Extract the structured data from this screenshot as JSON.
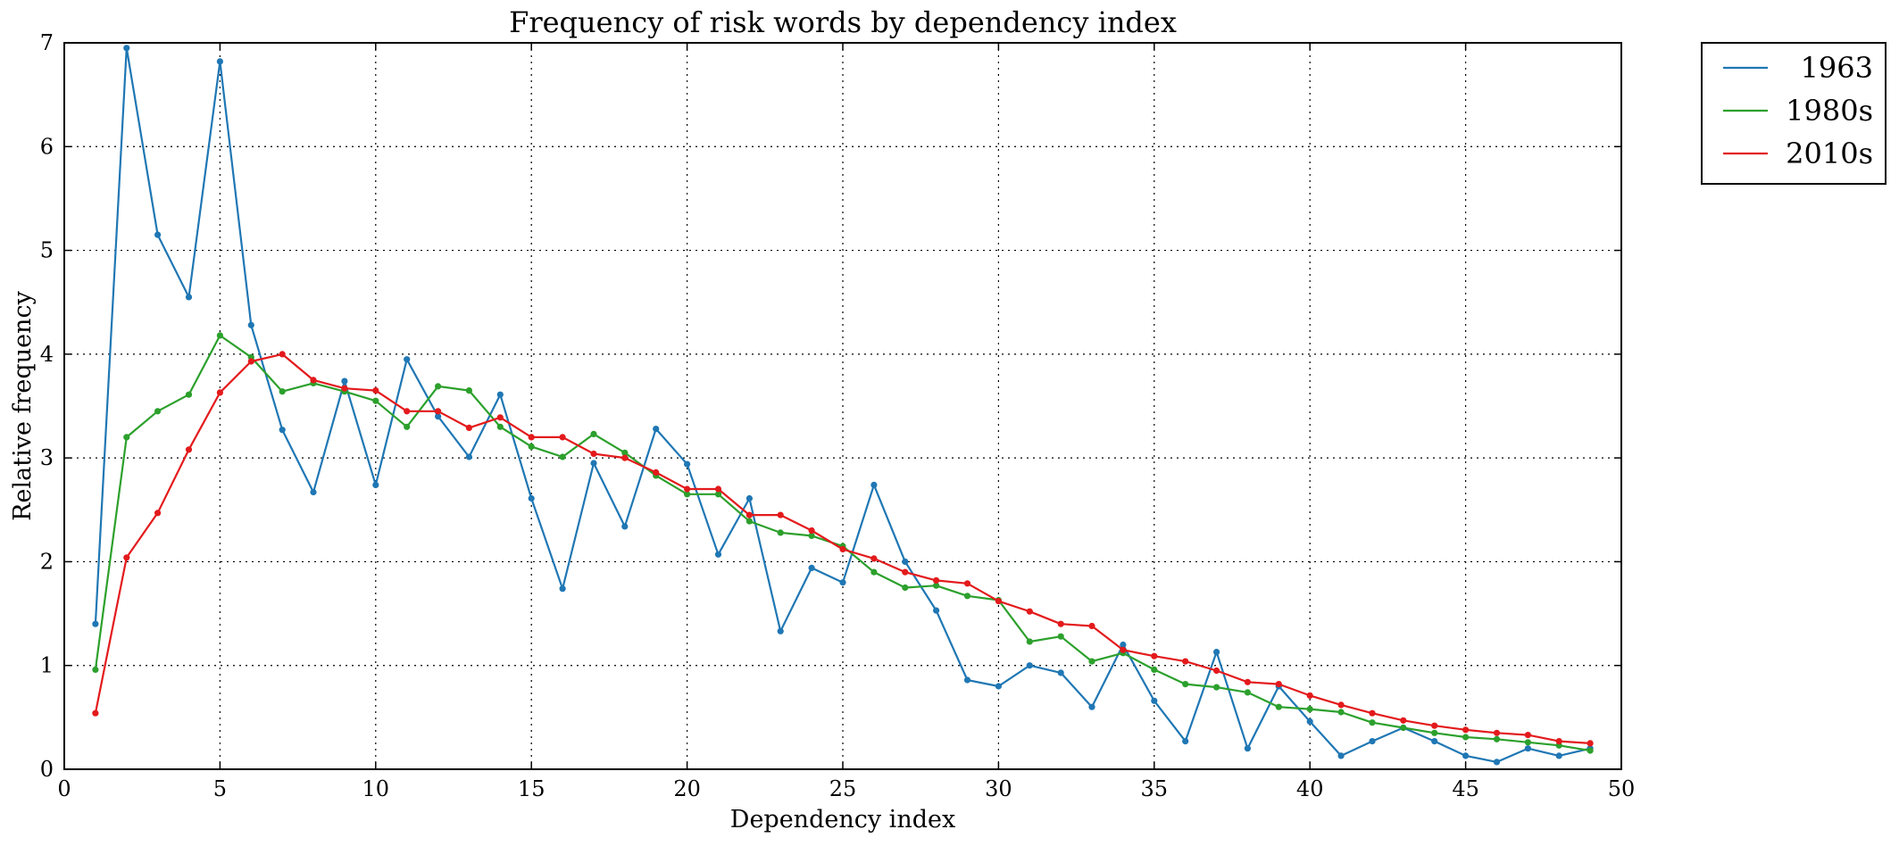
{
  "chart_data": {
    "type": "line",
    "title": "Frequency of risk words by dependency index",
    "xlabel": "Dependency index",
    "ylabel": "Relative frequency",
    "xlim": [
      0,
      50
    ],
    "ylim": [
      0,
      7
    ],
    "xticks": [
      0,
      5,
      10,
      15,
      20,
      25,
      30,
      35,
      40,
      45,
      50
    ],
    "yticks": [
      0,
      1,
      2,
      3,
      4,
      5,
      6,
      7
    ],
    "grid": true,
    "legend_position": "outside-top-right",
    "x": [
      1,
      2,
      3,
      4,
      5,
      6,
      7,
      8,
      9,
      10,
      11,
      12,
      13,
      14,
      15,
      16,
      17,
      18,
      19,
      20,
      21,
      22,
      23,
      24,
      25,
      26,
      27,
      28,
      29,
      30,
      31,
      32,
      33,
      34,
      35,
      36,
      37,
      38,
      39,
      40,
      41,
      42,
      43,
      44,
      45,
      46,
      47,
      48,
      49
    ],
    "series": [
      {
        "name": "1963",
        "color": "#1f77b4",
        "values": [
          1.4,
          6.95,
          5.15,
          4.55,
          6.82,
          4.28,
          3.27,
          2.67,
          3.74,
          2.74,
          3.95,
          3.4,
          3.01,
          3.61,
          2.61,
          1.74,
          2.95,
          2.34,
          3.28,
          2.94,
          2.07,
          2.61,
          1.33,
          1.94,
          1.8,
          2.74,
          2.0,
          1.53,
          0.86,
          0.8,
          1.0,
          0.93,
          0.6,
          1.2,
          0.66,
          0.27,
          1.13,
          0.2,
          0.8,
          0.46,
          0.13,
          0.27,
          0.4,
          0.27,
          0.13,
          0.07,
          0.2,
          0.13,
          0.2
        ]
      },
      {
        "name": "1980s",
        "color": "#2ca02c",
        "values": [
          0.96,
          3.2,
          3.45,
          3.61,
          4.18,
          3.97,
          3.64,
          3.72,
          3.64,
          3.55,
          3.3,
          3.69,
          3.65,
          3.3,
          3.11,
          3.01,
          3.23,
          3.05,
          2.83,
          2.65,
          2.65,
          2.39,
          2.28,
          2.25,
          2.15,
          1.9,
          1.75,
          1.77,
          1.67,
          1.63,
          1.23,
          1.28,
          1.04,
          1.12,
          0.96,
          0.82,
          0.79,
          0.74,
          0.6,
          0.58,
          0.55,
          0.45,
          0.4,
          0.35,
          0.31,
          0.29,
          0.26,
          0.23,
          0.18
        ]
      },
      {
        "name": "2010s",
        "color": "#e31a1c",
        "values": [
          0.54,
          2.04,
          2.47,
          3.08,
          3.63,
          3.93,
          4.0,
          3.75,
          3.67,
          3.65,
          3.45,
          3.45,
          3.29,
          3.39,
          3.2,
          3.2,
          3.04,
          3.0,
          2.86,
          2.7,
          2.7,
          2.45,
          2.45,
          2.3,
          2.12,
          2.03,
          1.9,
          1.82,
          1.79,
          1.62,
          1.52,
          1.4,
          1.38,
          1.15,
          1.09,
          1.04,
          0.95,
          0.84,
          0.82,
          0.71,
          0.62,
          0.54,
          0.47,
          0.42,
          0.38,
          0.35,
          0.33,
          0.27,
          0.25
        ]
      }
    ]
  }
}
